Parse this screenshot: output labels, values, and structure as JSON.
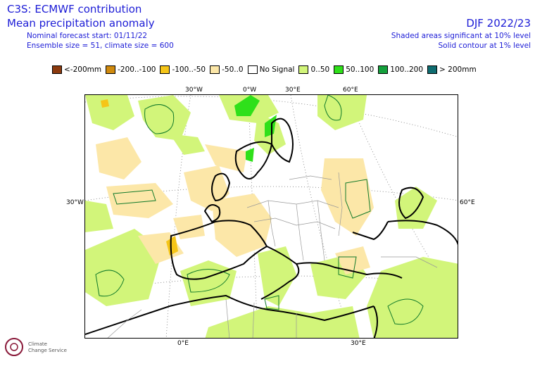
{
  "header": {
    "title": "C3S: ECMWF contribution",
    "subtitle": "Mean precipitation anomaly",
    "forecast_start": "Nominal forecast start: 01/11/22",
    "ensemble": "Ensemble size = 51, climate size = 600",
    "season": "DJF 2022/23",
    "significance_shaded": "Shaded areas significant at 10% level",
    "significance_contour": "Solid contour at 1% level"
  },
  "legend": [
    {
      "label": "<-200mm",
      "color": "#8b3a0e"
    },
    {
      "label": "-200..-100",
      "color": "#d08a0e"
    },
    {
      "label": "-100..-50",
      "color": "#f5c518"
    },
    {
      "label": "-50..0",
      "color": "#fce7a8"
    },
    {
      "label": "No Signal",
      "color": "#ffffff"
    },
    {
      "label": "0..50",
      "color": "#d2f57a"
    },
    {
      "label": "50..100",
      "color": "#2fe01a"
    },
    {
      "label": "100..200",
      "color": "#14a03c"
    },
    {
      "label": "> 200mm",
      "color": "#0e6c70"
    }
  ],
  "map_labels": {
    "top": [
      "30°W",
      "0°W",
      "30°E",
      "60°E"
    ],
    "left": "30°W",
    "right": "60°E",
    "bottom": [
      "0°E",
      "30°E"
    ]
  },
  "logo": {
    "line1": "Climate",
    "line2": "Change Service"
  }
}
